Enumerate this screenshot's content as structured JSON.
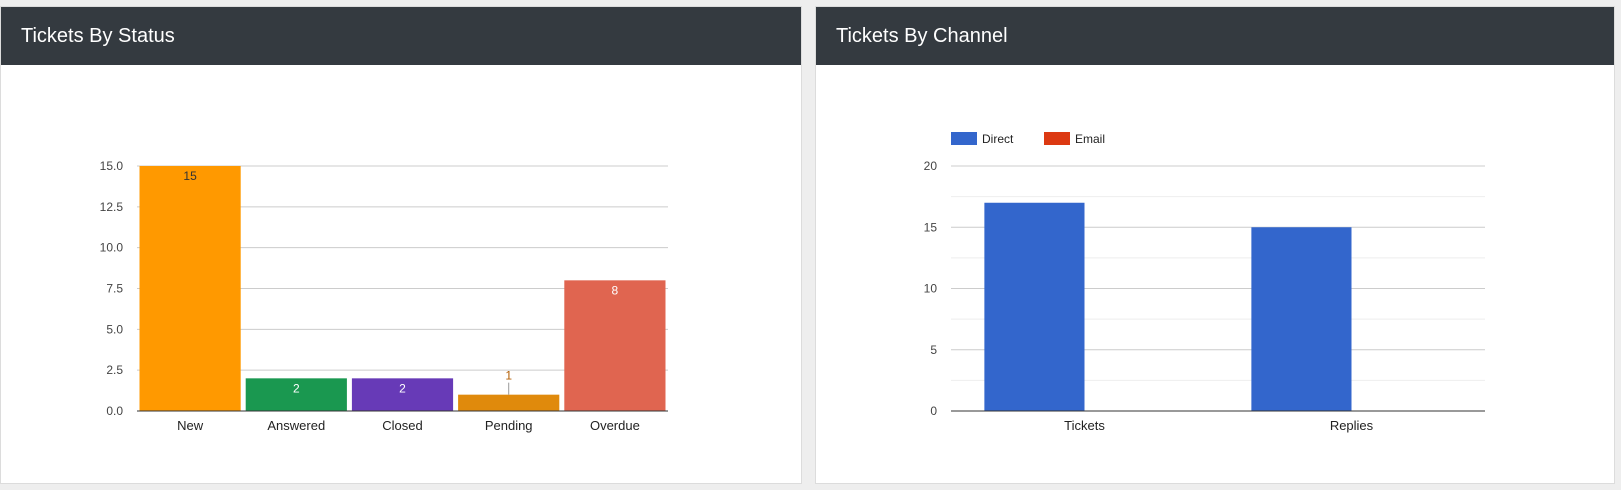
{
  "panels": {
    "status": {
      "title": "Tickets By Status"
    },
    "channel": {
      "title": "Tickets By Channel"
    }
  },
  "chart_data": [
    {
      "type": "bar",
      "categories": [
        "New",
        "Answered",
        "Closed",
        "Pending",
        "Overdue"
      ],
      "values": [
        15,
        2,
        2,
        1,
        8
      ],
      "data_labels": [
        "15",
        "2",
        "2",
        "1",
        "8"
      ],
      "colors": [
        "#ff9900",
        "#1a9850",
        "#673ab7",
        "#e08a0c",
        "#e06550"
      ],
      "label_colors": [
        "#333333",
        "#ffffff",
        "#ffffff",
        "#b35c00",
        "#ffffff"
      ],
      "y_ticks": [
        "0.0",
        "2.5",
        "5.0",
        "7.5",
        "10.0",
        "12.5",
        "15.0"
      ],
      "ylim": [
        0,
        15
      ],
      "grid": true,
      "legend": "none"
    },
    {
      "type": "bar",
      "categories": [
        "Tickets",
        "Replies"
      ],
      "series": [
        {
          "name": "Direct",
          "values": [
            17,
            15
          ],
          "color": "#3366cc"
        },
        {
          "name": "Email",
          "values": [
            0,
            0
          ],
          "color": "#dc3912"
        }
      ],
      "y_ticks": [
        "0",
        "5",
        "10",
        "15",
        "20"
      ],
      "ylim": [
        0,
        20
      ],
      "grid": true,
      "legend": "top-left"
    }
  ]
}
